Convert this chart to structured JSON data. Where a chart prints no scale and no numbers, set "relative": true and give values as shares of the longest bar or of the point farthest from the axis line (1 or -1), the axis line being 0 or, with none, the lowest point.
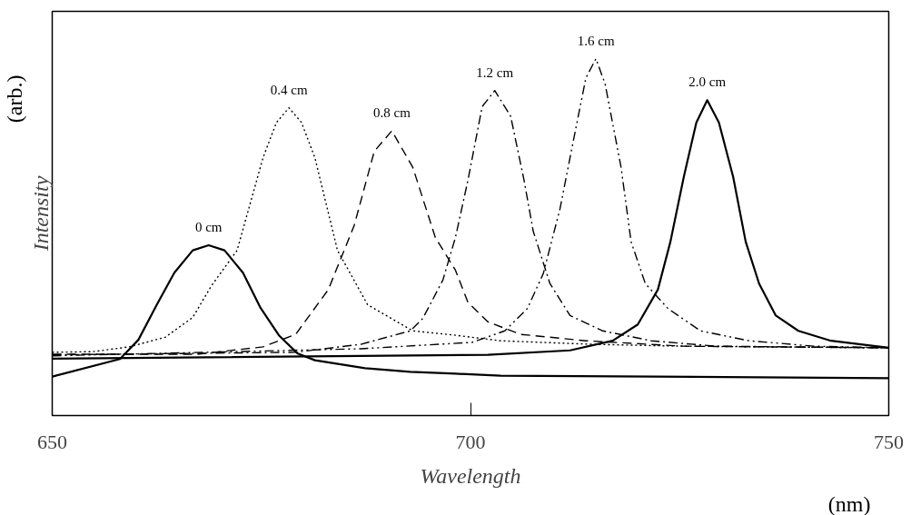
{
  "chart_data": {
    "type": "line",
    "relative": true,
    "xlabel": "Wavelength",
    "ylabel": "Intensity",
    "annotations": [
      "(arb.)",
      "(nm)"
    ],
    "xlim": [
      650,
      750
    ],
    "xticks": [
      650,
      700,
      750
    ],
    "tick_labels": "x",
    "grid": false,
    "marker": "none",
    "series": [
      {
        "name": "0 cm",
        "color": "#000000",
        "line_style": "solid",
        "x": [
          650,
          658.1,
          660.3,
          662.5,
          664.6,
          666.8,
          668.7,
          670.6,
          672.8,
          674.9,
          677.1,
          679.3,
          681.4,
          687.4,
          692.8,
          698.2,
          703.6,
          750
        ],
        "values": [
          0.005,
          0.06,
          0.12,
          0.23,
          0.33,
          0.4,
          0.416,
          0.4,
          0.33,
          0.22,
          0.134,
          0.078,
          0.056,
          0.031,
          0.02,
          0.014,
          0.008,
          0
        ]
      },
      {
        "name": "0.4 cm",
        "color": "#000000",
        "line_style": "dotted",
        "x": [
          650,
          654.9,
          659.2,
          663.5,
          666.8,
          669,
          672.1,
          675.2,
          676.8,
          678.3,
          679.8,
          681.4,
          684.1,
          687.7,
          693.1,
          698,
          703.6,
          714.5,
          725.3,
          750
        ],
        "values": [
          0.081,
          0.083,
          0.098,
          0.128,
          0.19,
          0.288,
          0.4,
          0.69,
          0.8,
          0.846,
          0.8,
          0.69,
          0.4,
          0.23,
          0.148,
          0.135,
          0.117,
          0.106,
          0.1,
          0.095
        ]
      },
      {
        "name": "0.8 cm",
        "color": "#000000",
        "line_style": "dashed",
        "x": [
          650,
          667.4,
          675.2,
          679.1,
          683,
          686.1,
          688.5,
          690.6,
          693.1,
          695.8,
          698.2,
          699.7,
          702.1,
          706,
          713.8,
          725.5,
          750
        ],
        "values": [
          0.075,
          0.075,
          0.098,
          0.137,
          0.277,
          0.478,
          0.71,
          0.774,
          0.66,
          0.44,
          0.338,
          0.237,
          0.176,
          0.137,
          0.117,
          0.1,
          0.095
        ]
      },
      {
        "name": "1.2 cm",
        "color": "#000000",
        "line_style": "dashdot",
        "x": [
          650,
          679.1,
          686.9,
          692.8,
          694.3,
          696.7,
          698.2,
          699.7,
          701.4,
          702.9,
          704.8,
          706.4,
          707.5,
          709.5,
          711.9,
          715.8,
          721.6,
          729.4,
          750
        ],
        "values": [
          0.073,
          0.081,
          0.106,
          0.148,
          0.187,
          0.307,
          0.44,
          0.62,
          0.85,
          0.9,
          0.82,
          0.62,
          0.46,
          0.296,
          0.196,
          0.148,
          0.117,
          0.1,
          0.095
        ]
      },
      {
        "name": "1.6 cm",
        "color": "#000000",
        "line_style": "dashdotdot",
        "x": [
          650,
          686.9,
          700.2,
          704.1,
          706.8,
          708.7,
          710.7,
          712.2,
          713.8,
          715,
          716.1,
          718,
          719.2,
          720.9,
          723.6,
          727.5,
          733.3,
          741.1,
          750
        ],
        "values": [
          0.07,
          0.092,
          0.112,
          0.148,
          0.218,
          0.327,
          0.53,
          0.73,
          0.94,
          1.0,
          0.92,
          0.66,
          0.427,
          0.296,
          0.218,
          0.148,
          0.117,
          0.1,
          0.095
        ]
      },
      {
        "name": "2.0 cm",
        "color": "#000000",
        "line_style": "solid",
        "x": [
          650,
          702.1,
          711.9,
          717,
          720,
          722.4,
          723.9,
          725.5,
          727,
          728.3,
          729.7,
          731.4,
          732.9,
          734.5,
          736.5,
          739.2,
          743.1,
          750
        ],
        "values": [
          0.061,
          0.073,
          0.087,
          0.117,
          0.168,
          0.277,
          0.427,
          0.63,
          0.8,
          0.87,
          0.8,
          0.63,
          0.427,
          0.296,
          0.196,
          0.148,
          0.117,
          0.095
        ]
      }
    ]
  }
}
